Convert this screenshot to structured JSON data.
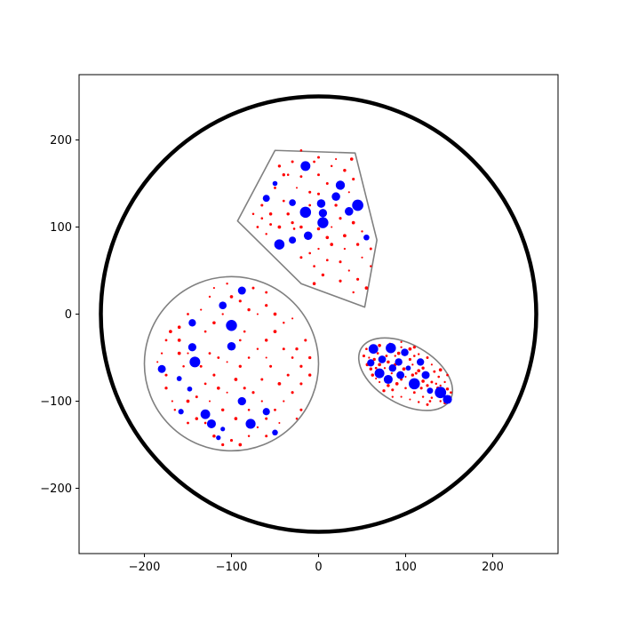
{
  "chart_data": {
    "type": "scatter",
    "title": "",
    "xlabel": "",
    "ylabel": "",
    "xlim": [
      -275,
      275
    ],
    "ylim": [
      -275,
      275
    ],
    "aspect": "equal",
    "grid": false,
    "x_ticks": [
      -200,
      -100,
      0,
      100,
      200
    ],
    "y_ticks": [
      -200,
      -100,
      0,
      100,
      200
    ],
    "x_tick_labels": [
      "−200",
      "−100",
      "0",
      "100",
      "200"
    ],
    "y_tick_labels": [
      "−200",
      "−100",
      "0",
      "100",
      "200"
    ],
    "colors": {
      "outer_circle": "#000000",
      "region_outline": "#808080",
      "large_points": "#0000ff",
      "small_points": "#ff0000",
      "axes": "#000000"
    },
    "outer_circle": {
      "center": [
        0,
        0
      ],
      "r": 250
    },
    "regions": [
      {
        "kind": "polygon",
        "vertices": [
          [
            -50,
            188
          ],
          [
            42,
            185
          ],
          [
            67,
            85
          ],
          [
            53,
            8
          ],
          [
            -20,
            35
          ],
          [
            -93,
            107
          ]
        ]
      },
      {
        "kind": "circle",
        "center": [
          -100,
          -57
        ],
        "r": 100
      },
      {
        "kind": "ellipse",
        "center": [
          100,
          -69
        ],
        "rx": 59,
        "ry": 34,
        "angle": -30
      }
    ],
    "large_points": [
      [
        -50,
        150
      ],
      [
        -60,
        133
      ],
      [
        -30,
        128
      ],
      [
        -15,
        117
      ],
      [
        5,
        116
      ],
      [
        3,
        127
      ],
      [
        20,
        135
      ],
      [
        35,
        118
      ],
      [
        -12,
        90
      ],
      [
        -30,
        85
      ],
      [
        5,
        105
      ],
      [
        -45,
        80
      ],
      [
        55,
        88
      ],
      [
        -15,
        170
      ],
      [
        25,
        148
      ],
      [
        45,
        125
      ],
      [
        -110,
        10
      ],
      [
        -100,
        -13
      ],
      [
        -88,
        27
      ],
      [
        -145,
        -38
      ],
      [
        -180,
        -63
      ],
      [
        -160,
        -74
      ],
      [
        -148,
        -86
      ],
      [
        -145,
        -10
      ],
      [
        -142,
        -55
      ],
      [
        -100,
        -37
      ],
      [
        -158,
        -112
      ],
      [
        -88,
        -100
      ],
      [
        -78,
        -126
      ],
      [
        -110,
        -132
      ],
      [
        -123,
        -126
      ],
      [
        -115,
        -142
      ],
      [
        -60,
        -112
      ],
      [
        -50,
        -136
      ],
      [
        -130,
        -115
      ],
      [
        63,
        -40
      ],
      [
        83,
        -39
      ],
      [
        73,
        -52
      ],
      [
        99,
        -44
      ],
      [
        92,
        -55
      ],
      [
        117,
        -55
      ],
      [
        103,
        -62
      ],
      [
        123,
        -70
      ],
      [
        94,
        -70
      ],
      [
        110,
        -80
      ],
      [
        128,
        -88
      ],
      [
        140,
        -90
      ],
      [
        148,
        -98
      ],
      [
        70,
        -68
      ],
      [
        80,
        -75
      ],
      [
        60,
        -56
      ],
      [
        85,
        -62
      ]
    ],
    "small_points": [
      [
        -45,
        170
      ],
      [
        -30,
        175
      ],
      [
        -5,
        175
      ],
      [
        15,
        170
      ],
      [
        30,
        165
      ],
      [
        -40,
        160
      ],
      [
        -20,
        158
      ],
      [
        0,
        160
      ],
      [
        10,
        150
      ],
      [
        -25,
        145
      ],
      [
        -10,
        140
      ],
      [
        0,
        138
      ],
      [
        -40,
        130
      ],
      [
        -55,
        115
      ],
      [
        -65,
        110
      ],
      [
        -70,
        100
      ],
      [
        -60,
        92
      ],
      [
        -45,
        100
      ],
      [
        -30,
        105
      ],
      [
        -20,
        100
      ],
      [
        0,
        98
      ],
      [
        15,
        100
      ],
      [
        25,
        110
      ],
      [
        40,
        105
      ],
      [
        50,
        95
      ],
      [
        45,
        80
      ],
      [
        30,
        75
      ],
      [
        15,
        80
      ],
      [
        0,
        75
      ],
      [
        -10,
        70
      ],
      [
        -20,
        65
      ],
      [
        -5,
        55
      ],
      [
        10,
        62
      ],
      [
        25,
        60
      ],
      [
        35,
        50
      ],
      [
        45,
        40
      ],
      [
        55,
        30
      ],
      [
        60,
        55
      ],
      [
        40,
        25
      ],
      [
        5,
        45
      ],
      [
        -5,
        35
      ],
      [
        25,
        38
      ],
      [
        50,
        65
      ],
      [
        60,
        75
      ],
      [
        -35,
        115
      ],
      [
        20,
        125
      ],
      [
        35,
        140
      ],
      [
        -10,
        125
      ],
      [
        30,
        90
      ],
      [
        10,
        88
      ],
      [
        -50,
        145
      ],
      [
        -20,
        188
      ],
      [
        0,
        180
      ],
      [
        20,
        178
      ],
      [
        38,
        178
      ],
      [
        -35,
        160
      ],
      [
        -28,
        98
      ],
      [
        40,
        155
      ],
      [
        -65,
        125
      ],
      [
        -55,
        103
      ],
      [
        -75,
        115
      ],
      [
        -170,
        -20
      ],
      [
        -160,
        -30
      ],
      [
        -180,
        -45
      ],
      [
        -175,
        -85
      ],
      [
        -168,
        -100
      ],
      [
        -150,
        -100
      ],
      [
        -140,
        -95
      ],
      [
        -130,
        -80
      ],
      [
        -120,
        -70
      ],
      [
        -125,
        -45
      ],
      [
        -115,
        -50
      ],
      [
        -105,
        -55
      ],
      [
        -90,
        -60
      ],
      [
        -80,
        -50
      ],
      [
        -70,
        -40
      ],
      [
        -60,
        -30
      ],
      [
        -50,
        -20
      ],
      [
        -40,
        -10
      ],
      [
        -30,
        -5
      ],
      [
        -40,
        -40
      ],
      [
        -30,
        -50
      ],
      [
        -20,
        -60
      ],
      [
        -10,
        -70
      ],
      [
        -20,
        -80
      ],
      [
        -30,
        -90
      ],
      [
        -40,
        -100
      ],
      [
        -50,
        -110
      ],
      [
        -60,
        -120
      ],
      [
        -70,
        -130
      ],
      [
        -80,
        -140
      ],
      [
        -90,
        -150
      ],
      [
        -100,
        -145
      ],
      [
        -110,
        -150
      ],
      [
        -120,
        -140
      ],
      [
        -130,
        -125
      ],
      [
        -140,
        -120
      ],
      [
        -150,
        -125
      ],
      [
        -165,
        -110
      ],
      [
        -175,
        -70
      ],
      [
        -185,
        -55
      ],
      [
        -130,
        -20
      ],
      [
        -120,
        -10
      ],
      [
        -110,
        0
      ],
      [
        -100,
        20
      ],
      [
        -90,
        15
      ],
      [
        -80,
        5
      ],
      [
        -70,
        0
      ],
      [
        -60,
        10
      ],
      [
        -50,
        0
      ],
      [
        -55,
        -60
      ],
      [
        -65,
        -75
      ],
      [
        -75,
        -90
      ],
      [
        -85,
        -85
      ],
      [
        -95,
        -75
      ],
      [
        -115,
        -85
      ],
      [
        -125,
        -100
      ],
      [
        -110,
        -110
      ],
      [
        -95,
        -120
      ],
      [
        -80,
        -110
      ],
      [
        -65,
        -100
      ],
      [
        -45,
        -80
      ],
      [
        -35,
        -70
      ],
      [
        -25,
        -40
      ],
      [
        -15,
        -30
      ],
      [
        -10,
        -50
      ],
      [
        -20,
        -110
      ],
      [
        -25,
        -120
      ],
      [
        -125,
        20
      ],
      [
        -135,
        5
      ],
      [
        -150,
        0
      ],
      [
        -160,
        -15
      ],
      [
        -175,
        -30
      ],
      [
        -155,
        -60
      ],
      [
        -105,
        -90
      ],
      [
        -45,
        -125
      ],
      [
        -60,
        -140
      ],
      [
        -135,
        -60
      ],
      [
        -90,
        -30
      ],
      [
        -85,
        -20
      ],
      [
        -60,
        -50
      ],
      [
        -150,
        -45
      ],
      [
        -160,
        -45
      ],
      [
        -120,
        30
      ],
      [
        -105,
        35
      ],
      [
        -75,
        30
      ],
      [
        -60,
        25
      ],
      [
        55,
        -40
      ],
      [
        58,
        -50
      ],
      [
        68,
        -45
      ],
      [
        70,
        -58
      ],
      [
        78,
        -48
      ],
      [
        88,
        -48
      ],
      [
        95,
        -38
      ],
      [
        105,
        -40
      ],
      [
        110,
        -48
      ],
      [
        115,
        -46
      ],
      [
        125,
        -50
      ],
      [
        130,
        -58
      ],
      [
        133,
        -66
      ],
      [
        138,
        -72
      ],
      [
        145,
        -78
      ],
      [
        148,
        -86
      ],
      [
        140,
        -82
      ],
      [
        130,
        -78
      ],
      [
        120,
        -77
      ],
      [
        115,
        -65
      ],
      [
        108,
        -58
      ],
      [
        98,
        -63
      ],
      [
        88,
        -58
      ],
      [
        84,
        -68
      ],
      [
        76,
        -62
      ],
      [
        66,
        -62
      ],
      [
        62,
        -70
      ],
      [
        70,
        -78
      ],
      [
        80,
        -82
      ],
      [
        90,
        -80
      ],
      [
        100,
        -85
      ],
      [
        110,
        -90
      ],
      [
        120,
        -95
      ],
      [
        130,
        -96
      ],
      [
        140,
        -100
      ],
      [
        150,
        -95
      ],
      [
        125,
        -82
      ],
      [
        135,
        -80
      ],
      [
        108,
        -70
      ],
      [
        95,
        -75
      ],
      [
        85,
        -87
      ],
      [
        75,
        -88
      ],
      [
        100,
        -72
      ],
      [
        120,
        -62
      ],
      [
        105,
        -52
      ],
      [
        92,
        -45
      ],
      [
        80,
        -55
      ],
      [
        60,
        -63
      ],
      [
        64,
        -52
      ],
      [
        72,
        -70
      ],
      [
        142,
        -92
      ],
      [
        128,
        -100
      ],
      [
        118,
        -85
      ],
      [
        112,
        -68
      ],
      [
        137,
        -85
      ],
      [
        110,
        -38
      ],
      [
        95,
        -32
      ],
      [
        82,
        -34
      ],
      [
        70,
        -36
      ],
      [
        52,
        -48
      ],
      [
        56,
        -58
      ],
      [
        66,
        -74
      ],
      [
        85,
        -95
      ],
      [
        95,
        -95
      ],
      [
        105,
        -98
      ],
      [
        115,
        -101
      ],
      [
        125,
        -104
      ],
      [
        145,
        -102
      ],
      [
        152,
        -90
      ],
      [
        148,
        -70
      ],
      [
        140,
        -64
      ]
    ]
  }
}
